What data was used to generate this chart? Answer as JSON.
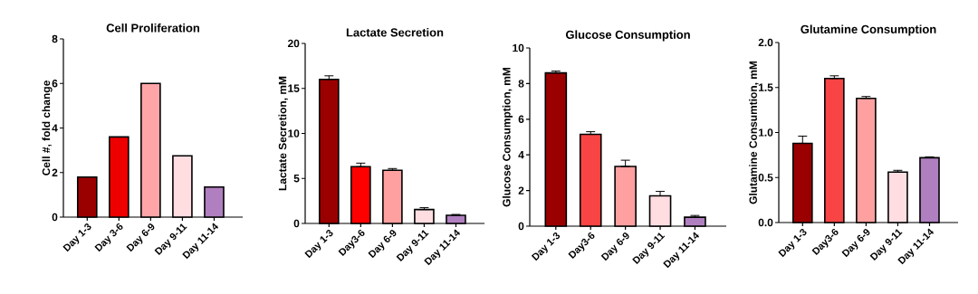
{
  "chart_data": [
    {
      "type": "bar",
      "title": "Cell Proliferation",
      "ylabel": "Cell #, fold change",
      "categories": [
        "Day 1-3",
        "Day 3-6",
        "Day 6-9",
        "Day 9-11",
        "Day 11-14"
      ],
      "values": [
        1.8,
        3.6,
        6.0,
        2.75,
        1.35
      ],
      "colors": [
        "#9b0000",
        "#ee0000",
        "#ffa5a8",
        "#ffdde1",
        "#b07fbf"
      ],
      "ylim": [
        0,
        8
      ],
      "yticks": [
        0,
        2,
        4,
        6,
        8
      ]
    },
    {
      "type": "bar",
      "title": "Lactate Secretion",
      "ylabel": "Lactate Secretion, mM",
      "categories": [
        "Day 1-3",
        "Day3-6",
        "Day 6-9",
        "Day 9-11",
        "Day 11-14"
      ],
      "values": [
        16.0,
        6.3,
        5.9,
        1.55,
        0.9
      ],
      "errors": [
        [
          16.0,
          16.4
        ],
        [
          6.3,
          6.7
        ],
        [
          5.9,
          6.1
        ],
        [
          1.55,
          1.75
        ],
        [
          0.9,
          1.0
        ]
      ],
      "colors": [
        "#9b0000",
        "#ff0000",
        "#ffa0a0",
        "#ffdde1",
        "#b07fbf"
      ],
      "ylim": [
        0,
        20
      ],
      "yticks": [
        0,
        5,
        10,
        15,
        20
      ]
    },
    {
      "type": "bar",
      "title": "Glucose Consumption",
      "ylabel": "Glucose Consumption, mM",
      "categories": [
        "Day 1-3",
        "Day3-6",
        "Day 6-9",
        "Day 9-11",
        "Day 11-14"
      ],
      "values": [
        8.6,
        5.15,
        3.35,
        1.7,
        0.5
      ],
      "errors": [
        [
          8.6,
          8.7
        ],
        [
          5.15,
          5.3
        ],
        [
          3.35,
          3.7
        ],
        [
          1.7,
          1.95
        ],
        [
          0.5,
          0.6
        ]
      ],
      "colors": [
        "#9b0000",
        "#f84444",
        "#ffa0a0",
        "#ffdde1",
        "#b07fbf"
      ],
      "ylim": [
        0,
        10
      ],
      "yticks": [
        0,
        2,
        4,
        6,
        8,
        10
      ]
    },
    {
      "type": "bar",
      "title": "Glutamine Consumption",
      "ylabel": "Glutamine Consumtion, mM",
      "categories": [
        "Day 1-3",
        "Day3-6",
        "Day 6-9",
        "Day 9-11",
        "Day 11-14"
      ],
      "values": [
        0.88,
        1.6,
        1.38,
        0.56,
        0.72
      ],
      "errors": [
        [
          0.88,
          0.96
        ],
        [
          1.6,
          1.63
        ],
        [
          1.38,
          1.4
        ],
        [
          0.56,
          0.58
        ],
        [
          0.72,
          0.73
        ]
      ],
      "colors": [
        "#9b0000",
        "#f84444",
        "#ffa0a0",
        "#ffdde1",
        "#b07fbf"
      ],
      "ylim": [
        0,
        2
      ],
      "yticks": [
        {
          "value": 0,
          "label": "0.0"
        },
        {
          "value": 0.5,
          "label": "0.5"
        },
        {
          "value": 1,
          "label": "1.0"
        },
        {
          "value": 1.5,
          "label": "1.5"
        },
        {
          "value": 2,
          "label": "2.0"
        }
      ]
    }
  ]
}
